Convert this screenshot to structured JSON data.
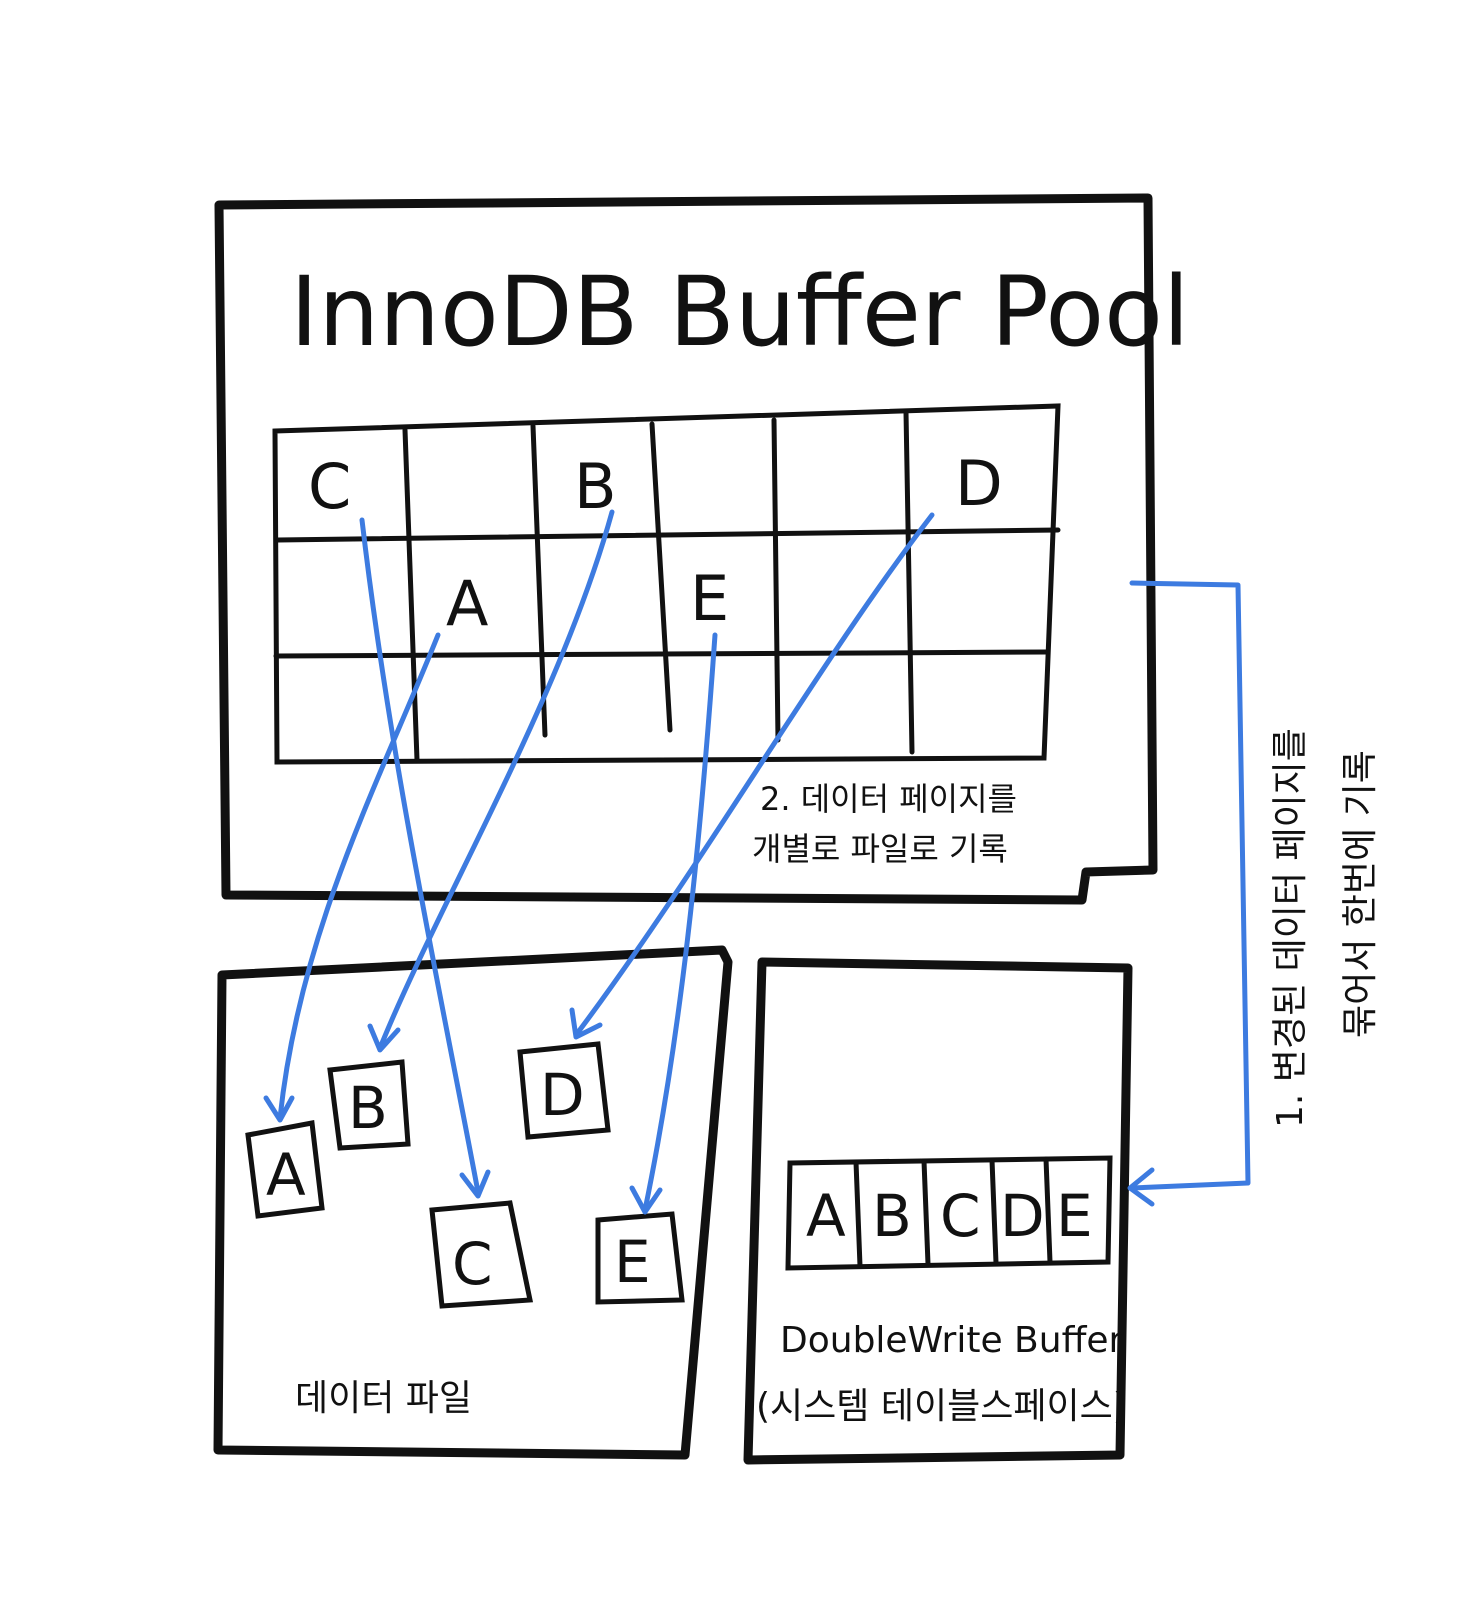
{
  "buffer_pool": {
    "title": "InnoDB Buffer Pool",
    "pages": {
      "C": "C",
      "B": "B",
      "D": "D",
      "A": "A",
      "E": "E"
    },
    "note_line1": "2. 데이터 페이지를",
    "note_line2": "개별로 파일로 기록"
  },
  "data_file": {
    "label": "데이터 파일",
    "pages": {
      "A": "A",
      "B": "B",
      "C": "C",
      "D": "D",
      "E": "E"
    }
  },
  "doublewrite": {
    "label": "DoubleWrite Buffer",
    "sublabel": "(시스템 테이블스페이스)",
    "cells": [
      "A",
      "B",
      "C",
      "D",
      "E"
    ]
  },
  "side_note": {
    "line1": "1. 변경된 데이터 페이지를",
    "line2": "묶어서 한번에 기록"
  },
  "colors": {
    "arrow": "#3d7be0",
    "ink": "#111111"
  }
}
